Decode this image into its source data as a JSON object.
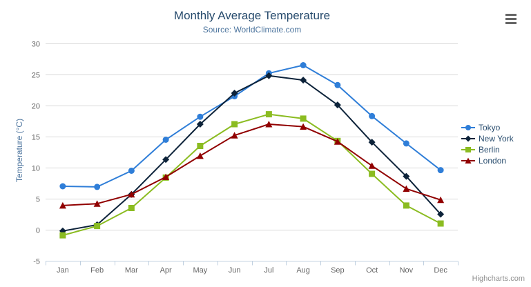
{
  "chart": {
    "credits": "Highcharts.com"
  },
  "palette": {
    "title_color": "#274b6d",
    "subtitle_color": "#4d759e",
    "axis_label_color": "#666666",
    "axis_line_color": "#c0d0e0",
    "gridline_color": "#d8d8d8",
    "legend_text_color": "#274b6d",
    "credits_color": "#909090",
    "menu_icon_color": "#666666"
  },
  "chart_data": {
    "type": "line",
    "title": "Monthly Average Temperature",
    "subtitle": "Source: WorldClimate.com",
    "xlabel": "",
    "ylabel": "Temperature (°C)",
    "ylim": [
      -5,
      30
    ],
    "ytick_interval": 5,
    "grid": true,
    "legend_position": "right",
    "categories": [
      "Jan",
      "Feb",
      "Mar",
      "Apr",
      "May",
      "Jun",
      "Jul",
      "Aug",
      "Sep",
      "Oct",
      "Nov",
      "Dec"
    ],
    "series": [
      {
        "name": "Tokyo",
        "color": "#2f7ed8",
        "marker": "circle",
        "values": [
          7.0,
          6.9,
          9.5,
          14.5,
          18.2,
          21.5,
          25.2,
          26.5,
          23.3,
          18.3,
          13.9,
          9.6
        ]
      },
      {
        "name": "New York",
        "color": "#0d233a",
        "marker": "diamond",
        "values": [
          -0.2,
          0.8,
          5.7,
          11.3,
          17.0,
          22.0,
          24.8,
          24.1,
          20.1,
          14.1,
          8.6,
          2.5
        ]
      },
      {
        "name": "Berlin",
        "color": "#8bbc21",
        "marker": "square",
        "values": [
          -0.9,
          0.6,
          3.5,
          8.4,
          13.5,
          17.0,
          18.6,
          17.9,
          14.3,
          9.0,
          3.9,
          1.0
        ]
      },
      {
        "name": "London",
        "color": "#910000",
        "marker": "triangle",
        "values": [
          3.9,
          4.2,
          5.7,
          8.5,
          11.9,
          15.2,
          17.0,
          16.6,
          14.2,
          10.3,
          6.6,
          4.8
        ]
      }
    ]
  }
}
